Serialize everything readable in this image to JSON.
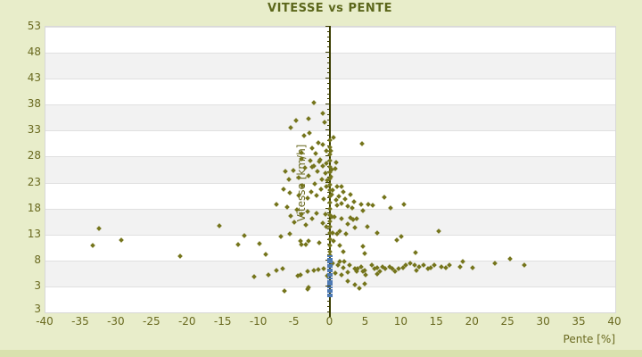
{
  "page": {
    "background_color": "#e8edca",
    "footer_strip_color": "#d9e1ae",
    "text_color": "#69691f",
    "title_color": "#5c671c"
  },
  "title": "VITESSE vs PENTE",
  "chart_data": {
    "type": "scatter",
    "title": "VITESSE vs PENTE",
    "xlabel": "Pente [%]",
    "ylabel": "Vitesse [km/h]",
    "xlim": [
      -40,
      40
    ],
    "ylim": [
      -2,
      53
    ],
    "xticks": [
      -40,
      -35,
      -30,
      -25,
      -20,
      -15,
      -10,
      -5,
      0,
      5,
      10,
      15,
      20,
      25,
      30,
      35,
      40
    ],
    "yticks": [
      53,
      48,
      43,
      38,
      33,
      28,
      23,
      18,
      13,
      8,
      3
    ],
    "y_axis_bottom_label": "3",
    "grid": "horizontal-bands",
    "legend": "none",
    "band_colors": [
      "#ffffff",
      "#f2f2f2"
    ],
    "gridline_color": "#e0e0e0",
    "axis_line_color": "#3a3c00",
    "series": [
      {
        "name": "vitesse-vs-pente",
        "marker": "diamond",
        "color": "#75751c",
        "points": [
          [
            -2.2,
            38.3
          ],
          [
            -1.0,
            36.2
          ],
          [
            -2.9,
            35.1
          ],
          [
            -0.7,
            34.5
          ],
          [
            -4.7,
            34.8
          ],
          [
            -5.4,
            33.4
          ],
          [
            -3.6,
            31.9
          ],
          [
            -1.6,
            30.5
          ],
          [
            -1.0,
            30.1
          ],
          [
            0.6,
            31.5
          ],
          [
            4.6,
            30.3
          ],
          [
            -2.5,
            29.4
          ],
          [
            -0.5,
            29.0
          ],
          [
            -4.0,
            28.6
          ],
          [
            -1.9,
            28.4
          ],
          [
            0.2,
            28.9
          ],
          [
            -2.8,
            32.4
          ],
          [
            -4.0,
            27.4
          ],
          [
            -2.7,
            27.0
          ],
          [
            -1.3,
            27.2
          ],
          [
            -0.4,
            26.5
          ],
          [
            -2.2,
            26.0
          ],
          [
            -3.4,
            25.6
          ],
          [
            -5.1,
            25.2
          ],
          [
            -1.7,
            25.0
          ],
          [
            -0.6,
            24.6
          ],
          [
            -2.9,
            24.2
          ],
          [
            -4.3,
            23.8
          ],
          [
            -1.1,
            23.5
          ],
          [
            -0.3,
            23.2
          ],
          [
            -6.2,
            24.9
          ],
          [
            -5.7,
            23.4
          ],
          [
            0.9,
            26.7
          ],
          [
            0.8,
            25.5
          ],
          [
            0.3,
            25.3
          ],
          [
            0.2,
            23.9
          ],
          [
            -1.5,
            26.9
          ],
          [
            -2.4,
            25.8
          ],
          [
            -0.9,
            26.1
          ],
          [
            1.1,
            22.1
          ],
          [
            1.7,
            22.1
          ],
          [
            0.3,
            20.5
          ],
          [
            1.3,
            20.2
          ],
          [
            1.7,
            18.8
          ],
          [
            1.1,
            18.5
          ],
          [
            4.4,
            18.7
          ],
          [
            5.5,
            18.6
          ],
          [
            7.7,
            20.0
          ],
          [
            10.4,
            18.7
          ],
          [
            2.6,
            18.2
          ],
          [
            3.2,
            17.9
          ],
          [
            4.7,
            17.4
          ],
          [
            8.6,
            17.9
          ],
          [
            -6.4,
            21.6
          ],
          [
            -5.6,
            20.8
          ],
          [
            -4.3,
            20.3
          ],
          [
            -3.1,
            19.9
          ],
          [
            -1.8,
            20.3
          ],
          [
            -0.8,
            19.6
          ],
          [
            -7.4,
            18.6
          ],
          [
            -5.9,
            18.1
          ],
          [
            -4.6,
            17.6
          ],
          [
            -3.1,
            17.3
          ],
          [
            -1.8,
            16.9
          ],
          [
            -0.6,
            16.8
          ],
          [
            -2.1,
            22.6
          ],
          [
            -1.2,
            21.5
          ],
          [
            -2.6,
            21.0
          ],
          [
            -0.4,
            22.0
          ],
          [
            -3.8,
            22.3
          ],
          [
            0.5,
            21.3
          ],
          [
            0.9,
            19.4
          ],
          [
            2.2,
            19.6
          ],
          [
            1.9,
            21.0
          ],
          [
            3.4,
            19.1
          ],
          [
            6.1,
            18.4
          ],
          [
            2.9,
            20.6
          ],
          [
            0.3,
            16.3
          ],
          [
            0.7,
            16.2
          ],
          [
            1.7,
            15.9
          ],
          [
            2.9,
            16.1
          ],
          [
            3.3,
            15.7
          ],
          [
            3.8,
            15.8
          ],
          [
            2.6,
            14.8
          ],
          [
            3.6,
            14.2
          ],
          [
            5.3,
            14.4
          ],
          [
            6.7,
            13.2
          ],
          [
            2.3,
            13.0
          ],
          [
            1.1,
            12.9
          ],
          [
            0.4,
            13.2
          ],
          [
            15.3,
            13.5
          ],
          [
            -15.4,
            14.5
          ],
          [
            1.5,
            13.5
          ],
          [
            -4.9,
            15.2
          ],
          [
            -3.3,
            14.7
          ],
          [
            -2.4,
            15.9
          ],
          [
            -1.0,
            15.0
          ],
          [
            -0.4,
            14.4
          ],
          [
            -5.5,
            16.4
          ],
          [
            -3.9,
            16.8
          ],
          [
            -32.4,
            14.0
          ],
          [
            -12.0,
            12.6
          ],
          [
            -6.8,
            12.4
          ],
          [
            -5.6,
            13.0
          ],
          [
            -33.3,
            10.7
          ],
          [
            -29.2,
            11.7
          ],
          [
            -12.8,
            10.9
          ],
          [
            -9.8,
            11.1
          ],
          [
            -4.0,
            10.9
          ],
          [
            -3.3,
            10.9
          ],
          [
            -4.1,
            11.6
          ],
          [
            -2.9,
            11.6
          ],
          [
            9.4,
            11.7
          ],
          [
            10.1,
            12.4
          ],
          [
            -1.5,
            11.2
          ],
          [
            0.6,
            11.5
          ],
          [
            1.4,
            10.8
          ],
          [
            4.7,
            10.5
          ],
          [
            -21.0,
            8.7
          ],
          [
            -9.0,
            9.0
          ],
          [
            2.0,
            9.5
          ],
          [
            5.0,
            9.2
          ],
          [
            12.1,
            9.3
          ],
          [
            1.5,
            7.6
          ],
          [
            2.1,
            7.7
          ],
          [
            1.2,
            6.9
          ],
          [
            1.9,
            6.4
          ],
          [
            2.8,
            6.9
          ],
          [
            3.6,
            6.2
          ],
          [
            4.0,
            6.3
          ],
          [
            4.4,
            6.6
          ],
          [
            4.9,
            5.9
          ],
          [
            2.6,
            5.6
          ],
          [
            3.8,
            5.8
          ],
          [
            4.7,
            5.8
          ],
          [
            6.3,
            6.2
          ],
          [
            6.7,
            6.4
          ],
          [
            7.4,
            6.6
          ],
          [
            7.8,
            6.2
          ],
          [
            8.4,
            6.6
          ],
          [
            8.8,
            6.2
          ],
          [
            9.2,
            5.8
          ],
          [
            9.7,
            6.2
          ],
          [
            10.3,
            6.4
          ],
          [
            10.7,
            6.9
          ],
          [
            11.3,
            7.3
          ],
          [
            11.9,
            6.9
          ],
          [
            12.6,
            6.6
          ],
          [
            13.2,
            6.9
          ],
          [
            13.8,
            6.2
          ],
          [
            14.7,
            7.0
          ],
          [
            15.7,
            6.6
          ],
          [
            16.3,
            6.4
          ],
          [
            16.9,
            7.0
          ],
          [
            6.7,
            5.3
          ],
          [
            5.1,
            5.1
          ],
          [
            1.7,
            5.1
          ],
          [
            -8.6,
            5.0
          ],
          [
            -7.5,
            5.9
          ],
          [
            -6.6,
            6.3
          ],
          [
            -4.5,
            4.9
          ],
          [
            -4.1,
            5.0
          ],
          [
            -3.1,
            5.8
          ],
          [
            -2.2,
            5.9
          ],
          [
            -1.6,
            6.1
          ],
          [
            -0.8,
            6.2
          ],
          [
            -10.6,
            4.7
          ],
          [
            18.7,
            7.6
          ],
          [
            18.4,
            6.6
          ],
          [
            20.1,
            6.5
          ],
          [
            23.2,
            7.2
          ],
          [
            25.4,
            8.1
          ],
          [
            27.4,
            7.0
          ],
          [
            0.4,
            7.3
          ],
          [
            0.8,
            5.4
          ],
          [
            -0.3,
            4.9
          ],
          [
            5.9,
            6.9
          ],
          [
            7.1,
            5.7
          ],
          [
            12.2,
            5.9
          ],
          [
            14.2,
            6.5
          ],
          [
            -6.3,
            2.0
          ],
          [
            -3.1,
            2.3
          ],
          [
            -2.9,
            2.7
          ],
          [
            4.2,
            2.5
          ],
          [
            3.6,
            3.2
          ],
          [
            2.6,
            3.9
          ],
          [
            5.0,
            3.4
          ],
          [
            0,
            31.0
          ],
          [
            0,
            29.6
          ],
          [
            0,
            28.2
          ],
          [
            0,
            27.0
          ],
          [
            0,
            25.9
          ],
          [
            0,
            24.8
          ],
          [
            0,
            23.6
          ],
          [
            0,
            22.4
          ],
          [
            0,
            21.3
          ],
          [
            0,
            20.1
          ],
          [
            0,
            18.9
          ],
          [
            0,
            17.8
          ],
          [
            0,
            16.6
          ],
          [
            0,
            15.4
          ],
          [
            0,
            14.3
          ],
          [
            0,
            13.1
          ],
          [
            0,
            12.0
          ],
          [
            0,
            10.8
          ],
          [
            0,
            9.6
          ],
          [
            0,
            8.9
          ]
        ]
      },
      {
        "name": "zero-slope-stack",
        "marker": "dash",
        "color": "#4d79b3",
        "x": 0,
        "y_values": [
          8.6,
          8.2,
          7.8,
          7.4,
          7.0,
          6.6,
          6.1,
          5.7,
          5.3,
          4.8,
          4.4,
          3.9,
          3.5,
          3.1,
          2.6,
          2.2,
          1.7,
          1.3,
          0.9
        ]
      }
    ]
  }
}
